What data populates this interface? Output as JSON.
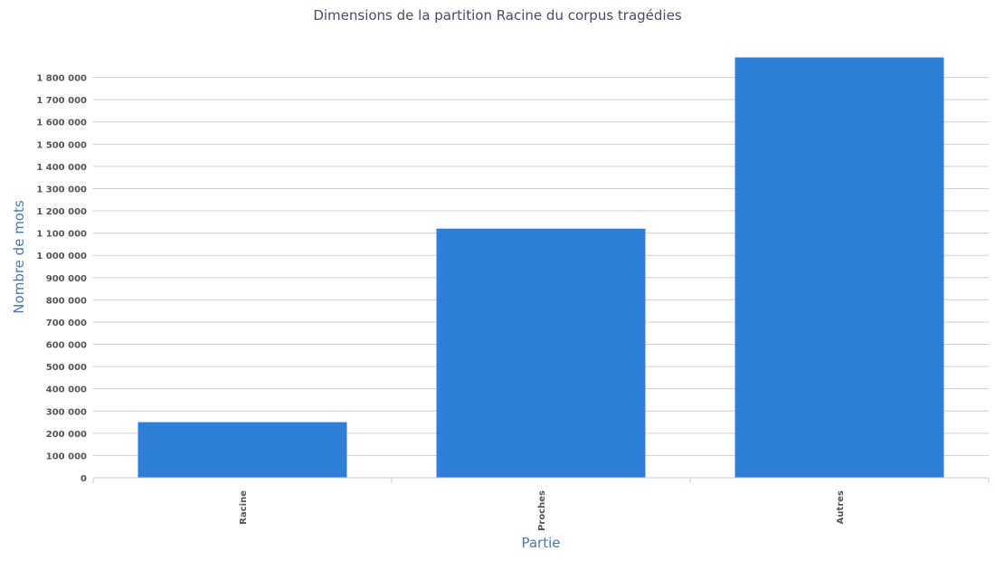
{
  "chart_data": {
    "type": "bar",
    "title": "Dimensions de la partition Racine du corpus tragédies",
    "xlabel": "Partie",
    "ylabel": "Nombre de mots",
    "categories": [
      "Racine",
      "Proches",
      "Autres"
    ],
    "values": [
      250000,
      1120000,
      1890000
    ],
    "ylim": [
      0,
      1900000
    ],
    "yticks": [
      0,
      100000,
      200000,
      300000,
      400000,
      500000,
      600000,
      700000,
      800000,
      900000,
      1000000,
      1100000,
      1200000,
      1300000,
      1400000,
      1500000,
      1600000,
      1700000,
      1800000
    ],
    "ytick_labels": [
      "0",
      "100 000",
      "200 000",
      "300 000",
      "400 000",
      "500 000",
      "600 000",
      "700 000",
      "800 000",
      "900 000",
      "1 000 000",
      "1 100 000",
      "1 200 000",
      "1 300 000",
      "1 400 000",
      "1 500 000",
      "1 600 000",
      "1 700 000",
      "1 800 000"
    ],
    "grid": true,
    "legend": false,
    "bar_color": "#2f7ed8"
  }
}
